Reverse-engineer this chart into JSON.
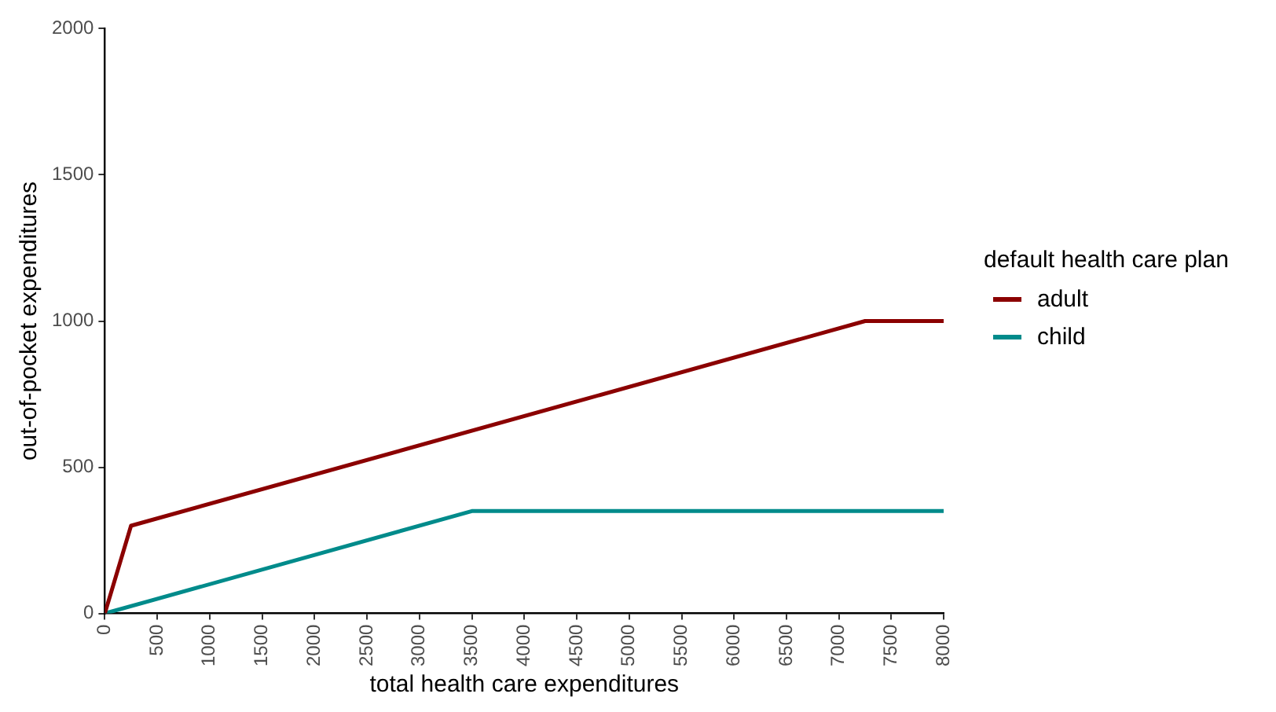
{
  "chart_data": {
    "type": "line",
    "xlabel": "total health care expenditures",
    "ylabel": "out-of-pocket expenditures",
    "legend_title": "default health care plan",
    "legend": "right",
    "grid": false,
    "marker": "none",
    "line_style": "solid",
    "xlim": [
      0,
      8000
    ],
    "xticks": [
      0,
      500,
      1000,
      1500,
      2000,
      2500,
      3000,
      3500,
      4000,
      4500,
      5000,
      5500,
      6000,
      6500,
      7000,
      7500,
      8000
    ],
    "ylim": [
      0,
      2000
    ],
    "yticks": [
      0,
      500,
      1000,
      1500,
      2000
    ],
    "series": [
      {
        "name": "adult",
        "color": "#8b0000",
        "x": [
          0,
          250,
          7250,
          8000
        ],
        "values": [
          0,
          300,
          1000,
          1000
        ]
      },
      {
        "name": "child",
        "color": "#008b8b",
        "x": [
          0,
          3500,
          8000
        ],
        "values": [
          0,
          350,
          350
        ]
      }
    ]
  }
}
